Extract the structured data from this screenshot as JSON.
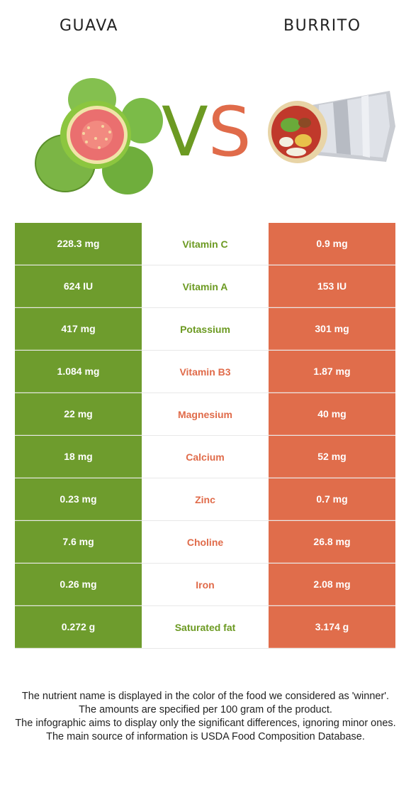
{
  "header": {
    "left_food": "GUAVA",
    "right_food": "BURRITO",
    "vs_v": "V",
    "vs_s": "S"
  },
  "colors": {
    "guava": "#6e9c2d",
    "burrito": "#e06d4b"
  },
  "rows": [
    {
      "nutrient": "Vitamin C",
      "left": "228.3 mg",
      "right": "0.9 mg",
      "winner": "guava"
    },
    {
      "nutrient": "Vitamin A",
      "left": "624 IU",
      "right": "153 IU",
      "winner": "guava"
    },
    {
      "nutrient": "Potassium",
      "left": "417 mg",
      "right": "301 mg",
      "winner": "guava"
    },
    {
      "nutrient": "Vitamin B3",
      "left": "1.084 mg",
      "right": "1.87 mg",
      "winner": "burrito"
    },
    {
      "nutrient": "Magnesium",
      "left": "22 mg",
      "right": "40 mg",
      "winner": "burrito"
    },
    {
      "nutrient": "Calcium",
      "left": "18 mg",
      "right": "52 mg",
      "winner": "burrito"
    },
    {
      "nutrient": "Zinc",
      "left": "0.23 mg",
      "right": "0.7 mg",
      "winner": "burrito"
    },
    {
      "nutrient": "Choline",
      "left": "7.6 mg",
      "right": "26.8 mg",
      "winner": "burrito"
    },
    {
      "nutrient": "Iron",
      "left": "0.26 mg",
      "right": "2.08 mg",
      "winner": "burrito"
    },
    {
      "nutrient": "Saturated fat",
      "left": "0.272 g",
      "right": "3.174 g",
      "winner": "guava"
    }
  ],
  "footer": {
    "line1": "The nutrient name is displayed in the color of the food we considered as 'winner'.",
    "line2": "The amounts are specified per 100 gram of the product.",
    "line3": "The infographic aims to display only the significant differences, ignoring minor ones.",
    "line4": "The main source of information is USDA Food Composition Database."
  }
}
